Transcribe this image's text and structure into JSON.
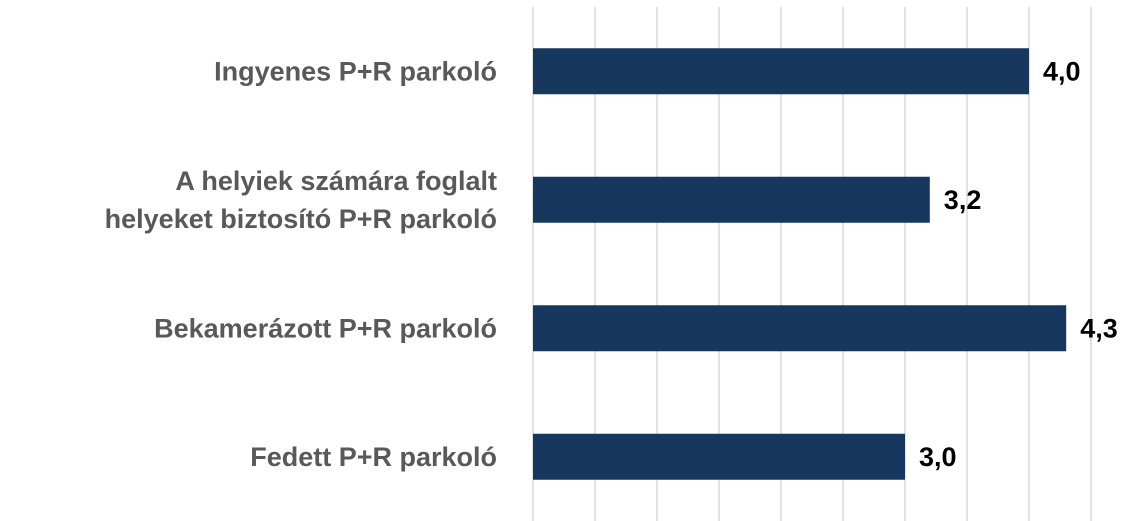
{
  "chart_data": {
    "type": "barh",
    "categories": [
      "Ingyenes P+R parkoló",
      "A helyiek számára foglalt\nhelyeket biztosító P+R parkoló",
      "Bekamerázott P+R parkoló",
      "Fedett P+R parkoló"
    ],
    "values": [
      4.0,
      3.2,
      4.3,
      3.0
    ],
    "value_labels": [
      "4,0",
      "3,2",
      "4,3",
      "3,0"
    ],
    "color": "#17375e",
    "xlim": [
      0,
      4.5
    ],
    "xticks": [
      0,
      0.5,
      1,
      1.5,
      2,
      2.5,
      3,
      3.5,
      4,
      4.5
    ],
    "grid": true
  }
}
